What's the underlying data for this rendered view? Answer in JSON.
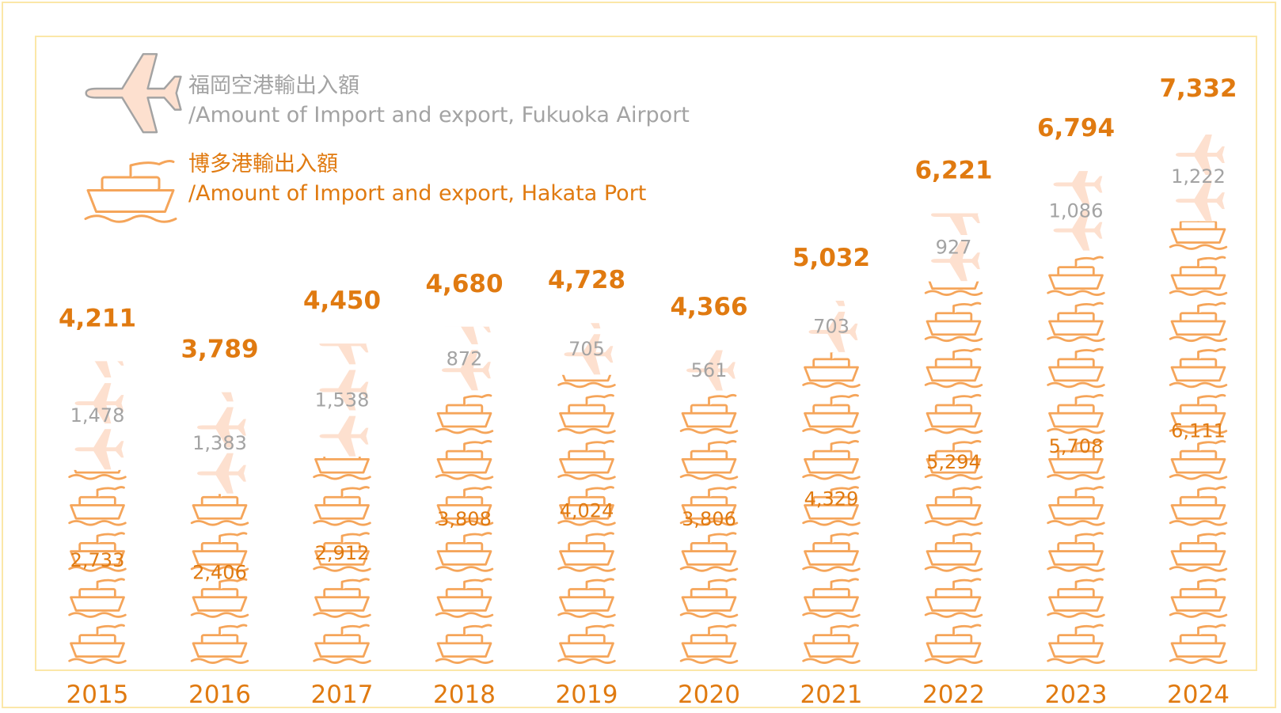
{
  "legend": {
    "airport_label_ja": "福岡空港輸出入額",
    "airport_label_en": "/Amount of Import and export, Fukuoka Airport",
    "port_label_ja": "博多港輸出入額",
    "port_label_en": "/Amount of Import and export, Hakata Port"
  },
  "chart_data": {
    "type": "bar",
    "stacked": true,
    "categories": [
      "2015",
      "2016",
      "2017",
      "2018",
      "2019",
      "2020",
      "2021",
      "2022",
      "2023",
      "2024"
    ],
    "series": [
      {
        "name": "博多港輸出入額 /Amount of Import and export, Hakata Port",
        "values": [
          2733,
          2406,
          2912,
          3808,
          4024,
          3806,
          4329,
          5294,
          5708,
          6111
        ],
        "labels": [
          "2,733",
          "2,406",
          "2,912",
          "3,808",
          "4,024",
          "3,806",
          "4,329",
          "5,294",
          "5,708",
          "6,111"
        ],
        "color": "#f5a55a",
        "label_color": "#e07a10",
        "icon": "ship-icon"
      },
      {
        "name": "福岡空港輸出入額 /Amount of Import and export, Fukuoka Airport",
        "values": [
          1478,
          1383,
          1538,
          872,
          705,
          561,
          703,
          927,
          1086,
          1222
        ],
        "labels": [
          "1,478",
          "1,383",
          "1,538",
          "872",
          "705",
          "561",
          "703",
          "927",
          "1,086",
          "1,222"
        ],
        "color": "#fde0cf",
        "label_color": "#a3a3a3",
        "icon": "airplane-icon"
      }
    ],
    "totals": [
      4211,
      3789,
      4450,
      4680,
      4728,
      4366,
      5032,
      6221,
      6794,
      7332
    ],
    "total_labels": [
      "4,211",
      "3,789",
      "4,450",
      "4,680",
      "4,728",
      "4,366",
      "5,032",
      "6,221",
      "6,794",
      "7,332"
    ],
    "total_color": "#e07a10",
    "ylim": [
      0,
      7500
    ],
    "title": "",
    "xlabel": "",
    "ylabel": "",
    "grid": false,
    "legend_position": "top-left"
  }
}
